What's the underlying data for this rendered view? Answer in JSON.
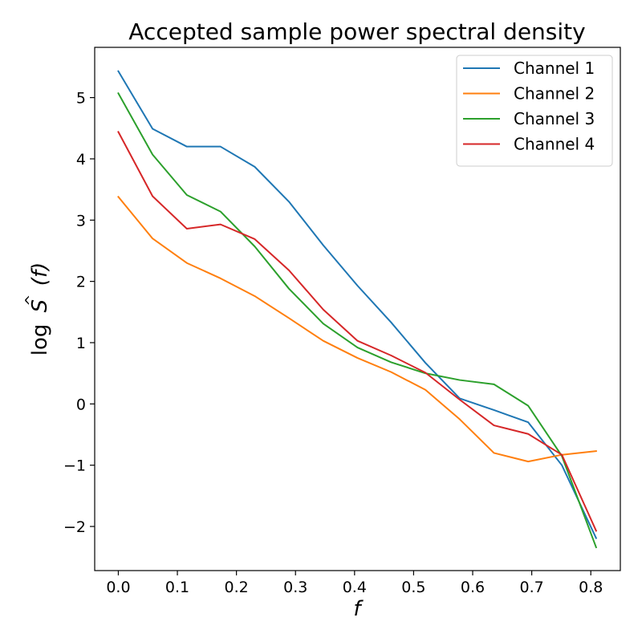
{
  "chart_data": {
    "type": "line",
    "title": "Accepted sample power spectral density",
    "xlabel": "f",
    "ylabel": "log Ŝ(f)",
    "ylabel_parts": {
      "log": "log",
      "S": "S",
      "hat": "^",
      "paren": "(f)"
    },
    "xlim": [
      -0.04,
      0.85
    ],
    "ylim": [
      -2.72,
      5.82
    ],
    "x_ticks": [
      0.0,
      0.1,
      0.2,
      0.3,
      0.4,
      0.5,
      0.6,
      0.7,
      0.8
    ],
    "x_tick_labels": [
      "0.0",
      "0.1",
      "0.2",
      "0.3",
      "0.4",
      "0.5",
      "0.6",
      "0.7",
      "0.8"
    ],
    "y_ticks": [
      -2,
      -1,
      0,
      1,
      2,
      3,
      4,
      5
    ],
    "y_tick_labels": [
      "−2",
      "−1",
      "0",
      "1",
      "2",
      "3",
      "4",
      "5"
    ],
    "legend_position": "top-right",
    "x": [
      0.0,
      0.058,
      0.116,
      0.173,
      0.231,
      0.289,
      0.347,
      0.405,
      0.462,
      0.52,
      0.578,
      0.636,
      0.694,
      0.751,
      0.809
    ],
    "series": [
      {
        "name": "Channel 1",
        "color": "#1f77b4",
        "values": [
          5.43,
          4.49,
          4.2,
          4.2,
          3.87,
          3.3,
          2.59,
          1.93,
          1.33,
          0.67,
          0.09,
          -0.1,
          -0.3,
          -1.0,
          -2.19
        ]
      },
      {
        "name": "Channel 2",
        "color": "#ff7f0e",
        "values": [
          3.38,
          2.7,
          2.3,
          2.05,
          1.76,
          1.4,
          1.03,
          0.75,
          0.52,
          0.23,
          -0.25,
          -0.8,
          -0.94,
          -0.83,
          -0.77
        ]
      },
      {
        "name": "Channel 3",
        "color": "#2ca02c",
        "values": [
          5.07,
          4.07,
          3.41,
          3.14,
          2.57,
          1.88,
          1.31,
          0.92,
          0.68,
          0.5,
          0.39,
          0.32,
          -0.03,
          -0.85,
          -2.34
        ]
      },
      {
        "name": "Channel 4",
        "color": "#d62728",
        "values": [
          4.44,
          3.39,
          2.86,
          2.93,
          2.69,
          2.18,
          1.54,
          1.03,
          0.79,
          0.51,
          0.07,
          -0.35,
          -0.49,
          -0.83,
          -2.07
        ]
      }
    ]
  }
}
